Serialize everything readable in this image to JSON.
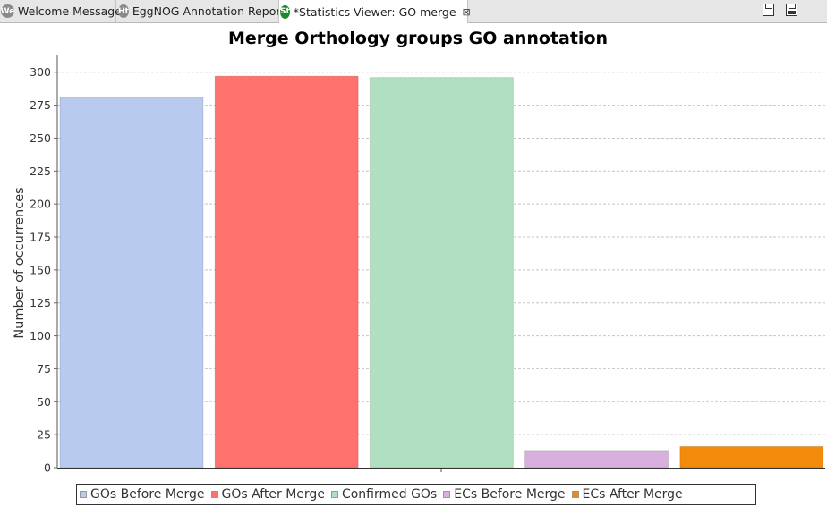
{
  "tabs": [
    {
      "label": "Welcome Message",
      "icon": "We",
      "icon_name": "welcome-icon"
    },
    {
      "label": "EggNOG Annotation Report",
      "icon": "Ht",
      "icon_name": "html-report-icon"
    },
    {
      "label": "*Statistics Viewer: GO merge",
      "icon": "St",
      "icon_name": "statistics-icon",
      "close": "⊠"
    }
  ],
  "chart_data": {
    "type": "bar",
    "title": "Merge Orthology groups GO annotation",
    "xlabel": "",
    "ylabel": "Number of occurrences",
    "ylim": [
      0,
      310
    ],
    "yticks": [
      0,
      25,
      50,
      75,
      100,
      125,
      150,
      175,
      200,
      225,
      250,
      275,
      300
    ],
    "grid": true,
    "legend_position": "bottom",
    "series": [
      {
        "name": "GOs Before Merge",
        "values": [
          281
        ],
        "color": "#b8cbee"
      },
      {
        "name": "GOs After Merge",
        "values": [
          297
        ],
        "color": "#ff716c"
      },
      {
        "name": "Confirmed GOs",
        "values": [
          296
        ],
        "color": "#b0e0bf"
      },
      {
        "name": "ECs Before Merge",
        "values": [
          13
        ],
        "color": "#d9b0dd"
      },
      {
        "name": "ECs After Merge",
        "values": [
          16
        ],
        "color": "#f28a0c"
      }
    ]
  }
}
